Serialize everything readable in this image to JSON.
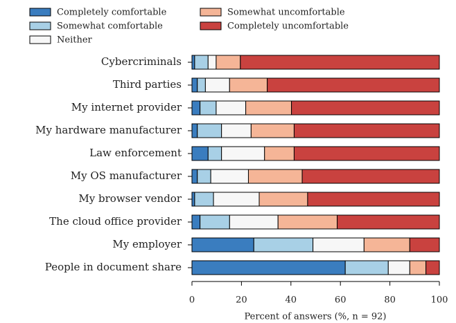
{
  "chart_data": {
    "type": "stacked-barh",
    "xlabel": "Percent of answers (%, n = 92)",
    "categories": [
      "Cybercriminals",
      "Third parties",
      "My internet provider",
      "My hardware manufacturer",
      "Law enforcement",
      "My OS manufacturer",
      "My browser vendor",
      "The cloud office provider",
      "My employer",
      "People in document share"
    ],
    "series": [
      {
        "name": "Completely comfortable",
        "color": "#3a7dbf",
        "values": [
          1.09,
          2.17,
          3.26,
          2.17,
          6.52,
          2.17,
          1.09,
          3.26,
          25.0,
          61.96
        ]
      },
      {
        "name": "Somewhat comfortable",
        "color": "#a8d0e6",
        "values": [
          5.43,
          3.26,
          6.52,
          9.78,
          5.43,
          5.43,
          7.61,
          11.96,
          23.91,
          17.39
        ]
      },
      {
        "name": "Neither",
        "color": "#f7f7f7",
        "values": [
          3.26,
          9.78,
          11.96,
          11.96,
          17.39,
          15.22,
          18.48,
          19.57,
          20.65,
          8.7
        ]
      },
      {
        "name": "Somewhat uncomfortable",
        "color": "#f5b597",
        "values": [
          9.78,
          15.22,
          18.48,
          17.39,
          11.96,
          21.74,
          19.57,
          23.91,
          18.48,
          6.52
        ]
      },
      {
        "name": "Completely uncomfortable",
        "color": "#c9423f",
        "values": [
          80.43,
          69.57,
          59.78,
          58.7,
          58.7,
          55.43,
          53.26,
          41.3,
          11.96,
          5.43
        ]
      }
    ],
    "xlim": [
      0,
      100
    ],
    "xticks": [
      0,
      20,
      40,
      60,
      80,
      100
    ]
  }
}
